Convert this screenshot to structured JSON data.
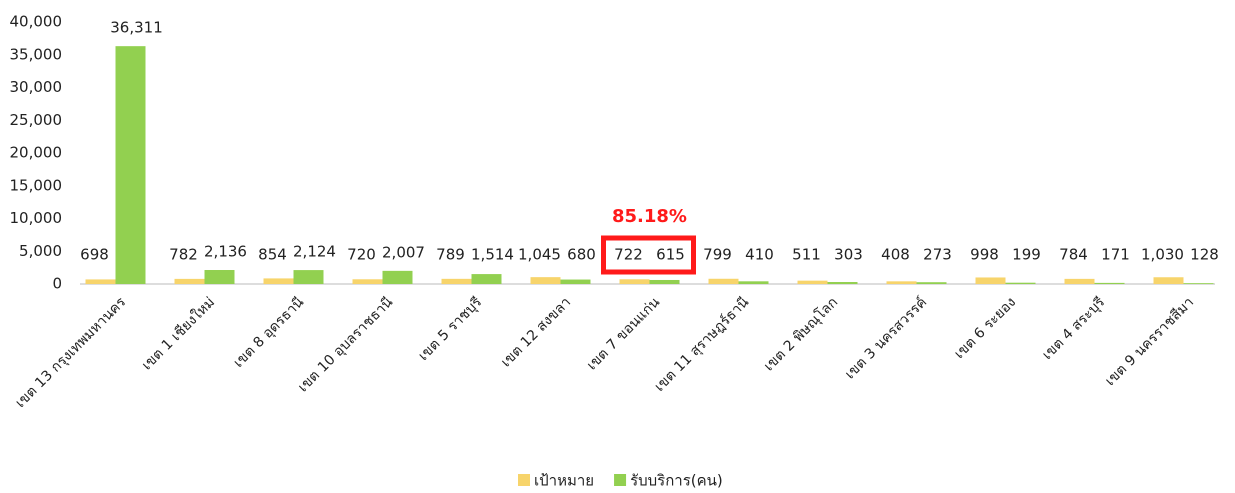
{
  "chart_data": {
    "type": "bar",
    "categories": [
      "เขต 13 กรุงเทพมหานคร",
      "เขต 1 เชียงใหม่",
      "เขต 8 อุดรธานี",
      "เขต 10 อุบลราชธานี",
      "เขต 5 ราชบุรี",
      "เขต 12 สงขลา",
      "เขต 7 ขอนแก่น",
      "เขต 11 สุราษฎร์ธานี",
      "เขต 2 พิษณุโลก",
      "เขต 3 นครสวรรค์",
      "เขต 6 ระยอง",
      "เขต 4 สระบุรี",
      "เขต 9 นครราชสีมา"
    ],
    "series": [
      {
        "name": "เป้าหมาย",
        "color": "#f7d46b",
        "values": [
          698,
          782,
          854,
          720,
          789,
          1045,
          722,
          799,
          511,
          408,
          998,
          784,
          1030
        ],
        "value_labels": [
          "698",
          "782",
          "854",
          "720",
          "789",
          "1,045",
          "722",
          "799",
          "511",
          "408",
          "998",
          "784",
          "1,030"
        ]
      },
      {
        "name": "รับบริการ(คน)",
        "color": "#92d050",
        "values": [
          36311,
          2136,
          2124,
          2007,
          1514,
          680,
          615,
          410,
          303,
          273,
          199,
          171,
          128
        ],
        "value_labels": [
          "36,311",
          "2,136",
          "2,124",
          "2,007",
          "1,514",
          "680",
          "615",
          "410",
          "303",
          "273",
          "199",
          "171",
          "128"
        ]
      }
    ],
    "ylim": [
      0,
      40000
    ],
    "yticks": [
      0,
      {
        "value": 5000,
        "label": "5,000"
      },
      {
        "value": 10000,
        "label": "10,000"
      },
      {
        "value": 15000,
        "label": "15,000"
      },
      {
        "value": 20000,
        "label": "20,000"
      },
      {
        "value": 25000,
        "label": "25,000"
      },
      {
        "value": 30000,
        "label": "30,000"
      },
      {
        "value": 35000,
        "label": "35,000"
      },
      {
        "value": 40000,
        "label": "40,000"
      }
    ],
    "grid": false,
    "legend": "bottom",
    "annotation": "85.18%"
  }
}
